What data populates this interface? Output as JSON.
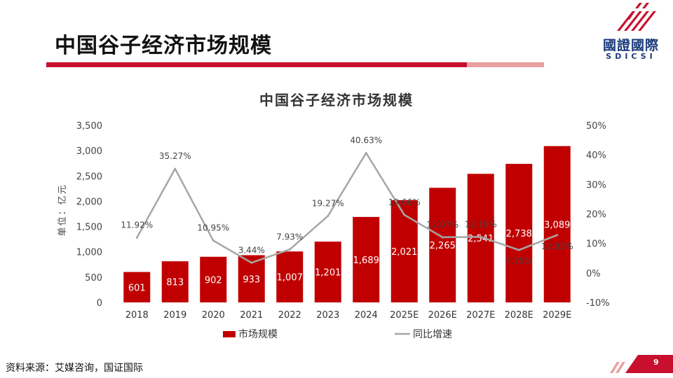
{
  "slide": {
    "title": "中国谷子经济市场规模",
    "logo_name": "國證國際",
    "logo_sub": "SDICSI",
    "source": "资料来源：艾媒咨询，国证国际",
    "page_number": "9",
    "accent": "#c8102e"
  },
  "chart_data": {
    "type": "bar",
    "title": "中国谷子经济市场规模",
    "categories": [
      "2018",
      "2019",
      "2020",
      "2021",
      "2022",
      "2023",
      "2024",
      "2025E",
      "2026E",
      "2027E",
      "2028E",
      "2029E"
    ],
    "ylabel": "单位：亿元",
    "ylim": [
      0,
      3500
    ],
    "yticks": [
      "0",
      "500",
      "1,000",
      "1,500",
      "2,000",
      "2,500",
      "3,000",
      "3,500"
    ],
    "ylim_right": [
      -10,
      50
    ],
    "yticks_right": [
      "-10%",
      "0%",
      "10%",
      "20%",
      "30%",
      "40%",
      "50%"
    ],
    "series": [
      {
        "name": "市场规模",
        "type": "bar",
        "color": "#c00000",
        "values": [
          601,
          813,
          902,
          933,
          1007,
          1201,
          1689,
          2021,
          2265,
          2541,
          2738,
          3089
        ],
        "labels": [
          "601",
          "813",
          "902",
          "933",
          "1,007",
          "1,201",
          "1,689",
          "2,021",
          "2,265",
          "2,541",
          "2,738",
          "3,089"
        ]
      },
      {
        "name": "同比增速",
        "type": "line",
        "color": "#a6a6a6",
        "axis": "right",
        "values": [
          11.92,
          35.27,
          10.95,
          3.44,
          7.93,
          19.27,
          40.63,
          19.66,
          12.07,
          12.19,
          7.75,
          12.82
        ],
        "labels": [
          "11.92%",
          "35.27%",
          "10.95%",
          "3.44%",
          "7.93%",
          "19.27%",
          "40.63%",
          "19.66%",
          "12.07%",
          "12.19%",
          "7.75%",
          "12.82%"
        ]
      }
    ],
    "grid": false,
    "legend": "bottom"
  }
}
